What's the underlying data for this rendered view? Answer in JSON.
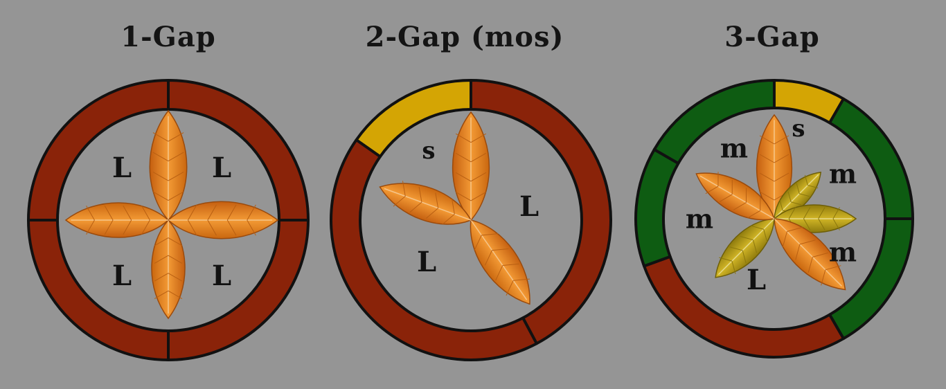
{
  "colors": {
    "background": "#959595",
    "large": "#8a2309",
    "small": "#d4a504",
    "medium": "#0e5c12",
    "outline": "#111111",
    "leaf_orange": "#e07c1c",
    "leaf_olive": "#b69b12"
  },
  "panels": [
    {
      "title": "1-Gap",
      "segments": [
        {
          "label": "L",
          "color": "large"
        },
        {
          "label": "L",
          "color": "large"
        },
        {
          "label": "L",
          "color": "large"
        },
        {
          "label": "L",
          "color": "large"
        }
      ]
    },
    {
      "title": "2-Gap (mos)",
      "segments": [
        {
          "label": "s",
          "color": "small"
        },
        {
          "label": "L",
          "color": "large"
        },
        {
          "label": "L",
          "color": "large"
        }
      ]
    },
    {
      "title": "3-Gap",
      "segments": [
        {
          "label": "s",
          "color": "small"
        },
        {
          "label": "m",
          "color": "medium"
        },
        {
          "label": "m",
          "color": "medium"
        },
        {
          "label": "L",
          "color": "large"
        },
        {
          "label": "m",
          "color": "medium"
        },
        {
          "label": "m",
          "color": "medium"
        }
      ]
    }
  ]
}
